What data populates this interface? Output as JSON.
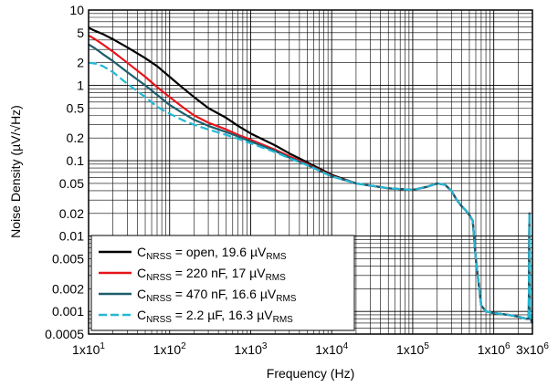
{
  "chart_data": {
    "type": "line",
    "title": "",
    "xlabel": "Frequency (Hz)",
    "ylabel": "Noise Density (µV/√Hz)",
    "x_scale": "log",
    "y_scale": "log",
    "xlim": [
      10,
      3000000
    ],
    "ylim": [
      0.0005,
      10
    ],
    "grid": true,
    "legend_position": "bottom-left",
    "x_ticks": [
      {
        "value": 10,
        "label": "1x10",
        "exp": "1"
      },
      {
        "value": 100,
        "label": "1x10",
        "exp": "2"
      },
      {
        "value": 1000,
        "label": "1x10",
        "exp": "3"
      },
      {
        "value": 10000,
        "label": "1x10",
        "exp": "4"
      },
      {
        "value": 100000,
        "label": "1x10",
        "exp": "5"
      },
      {
        "value": 1000000,
        "label": "1x10",
        "exp": "6"
      },
      {
        "value": 3000000,
        "label": "3x10",
        "exp": "6"
      }
    ],
    "y_ticks": [
      {
        "value": 10,
        "label": "10"
      },
      {
        "value": 5,
        "label": "5"
      },
      {
        "value": 2,
        "label": "2"
      },
      {
        "value": 1,
        "label": "1"
      },
      {
        "value": 0.5,
        "label": "0.5"
      },
      {
        "value": 0.2,
        "label": "0.2"
      },
      {
        "value": 0.1,
        "label": "0.1"
      },
      {
        "value": 0.05,
        "label": "0.05"
      },
      {
        "value": 0.02,
        "label": "0.02"
      },
      {
        "value": 0.01,
        "label": "0.01"
      },
      {
        "value": 0.005,
        "label": "0.005"
      },
      {
        "value": 0.002,
        "label": "0.002"
      },
      {
        "value": 0.001,
        "label": "0.001"
      },
      {
        "value": 0.0005,
        "label": "0.0005"
      }
    ],
    "series": [
      {
        "name": "C_NRSS = open, 19.6 µV_RMS",
        "legend_parts": {
          "main": "C",
          "sub": "NRSS",
          "rest": " = open, 19.6 µV",
          "sub2": "RMS"
        },
        "color": "#000000",
        "dash": false,
        "x": [
          10,
          12,
          15,
          20,
          30,
          50,
          70,
          100,
          150,
          200,
          300,
          500,
          700,
          1000,
          2000,
          3000,
          5000,
          10000,
          20000,
          50000,
          100000,
          150000,
          200000,
          250000,
          300000,
          350000,
          400000,
          450000,
          500000,
          550000,
          600000,
          700000,
          800000,
          1000000,
          1500000,
          2000000,
          2500000,
          2700000,
          2750000,
          2800000,
          2900000,
          3000000
        ],
        "y": [
          5.8,
          5.3,
          4.8,
          4.1,
          3.2,
          2.3,
          1.8,
          1.3,
          0.9,
          0.7,
          0.5,
          0.37,
          0.29,
          0.23,
          0.16,
          0.125,
          0.095,
          0.065,
          0.05,
          0.043,
          0.041,
          0.045,
          0.05,
          0.048,
          0.04,
          0.03,
          0.025,
          0.022,
          0.019,
          0.016,
          0.005,
          0.0012,
          0.001,
          0.00095,
          0.0009,
          0.00085,
          0.0008,
          0.0008,
          0.02,
          0.0009,
          0.00075,
          0.0007
        ]
      },
      {
        "name": "C_NRSS = 220 nF, 17 µV_RMS",
        "legend_parts": {
          "main": "C",
          "sub": "NRSS",
          "rest": " = 220 nF, 17 µV",
          "sub2": "RMS"
        },
        "color": "#e8141b",
        "dash": false,
        "x": [
          10,
          12,
          15,
          20,
          30,
          50,
          70,
          100,
          150,
          200,
          300,
          500,
          700,
          1000,
          2000,
          3000,
          5000,
          10000,
          20000,
          50000,
          100000,
          150000,
          200000,
          250000,
          300000,
          350000,
          400000,
          450000,
          500000,
          550000,
          600000,
          700000,
          800000,
          1000000,
          1500000,
          2000000,
          2500000,
          2700000,
          2750000,
          2800000,
          2900000,
          3000000
        ],
        "y": [
          4.6,
          4.1,
          3.5,
          2.8,
          2.0,
          1.3,
          0.95,
          0.7,
          0.5,
          0.4,
          0.32,
          0.26,
          0.22,
          0.19,
          0.14,
          0.115,
          0.09,
          0.063,
          0.05,
          0.043,
          0.041,
          0.045,
          0.05,
          0.048,
          0.04,
          0.03,
          0.025,
          0.022,
          0.019,
          0.016,
          0.005,
          0.0012,
          0.001,
          0.00095,
          0.0009,
          0.00085,
          0.0008,
          0.0008,
          0.02,
          0.0009,
          0.00075,
          0.0007
        ]
      },
      {
        "name": "C_NRSS = 470 nF, 16.6 µV_RMS",
        "legend_parts": {
          "main": "C",
          "sub": "NRSS",
          "rest": " = 470 nF, 16.6 µV",
          "sub2": "RMS"
        },
        "color": "#1d5d6b",
        "dash": false,
        "x": [
          10,
          12,
          15,
          20,
          30,
          50,
          70,
          100,
          150,
          200,
          300,
          500,
          700,
          1000,
          2000,
          3000,
          5000,
          10000,
          20000,
          50000,
          100000,
          150000,
          200000,
          250000,
          300000,
          350000,
          400000,
          450000,
          500000,
          550000,
          600000,
          700000,
          800000,
          1000000,
          1500000,
          2000000,
          2500000,
          2700000,
          2750000,
          2800000,
          2900000,
          3000000
        ],
        "y": [
          3.5,
          3.1,
          2.6,
          2.1,
          1.5,
          1.0,
          0.75,
          0.55,
          0.42,
          0.35,
          0.29,
          0.24,
          0.21,
          0.18,
          0.135,
          0.11,
          0.088,
          0.062,
          0.05,
          0.043,
          0.041,
          0.045,
          0.05,
          0.048,
          0.04,
          0.03,
          0.025,
          0.022,
          0.019,
          0.016,
          0.005,
          0.0012,
          0.001,
          0.00095,
          0.0009,
          0.00085,
          0.0008,
          0.0008,
          0.02,
          0.0009,
          0.00075,
          0.0007
        ]
      },
      {
        "name": "C_NRSS = 2.2 µF, 16.3 µV_RMS",
        "legend_parts": {
          "main": "C",
          "sub": "NRSS",
          "rest": " = 2.2 µF, 16.3 µV",
          "sub2": "RMS"
        },
        "color": "#22b8d4",
        "dash": true,
        "x": [
          10,
          12,
          15,
          20,
          30,
          50,
          70,
          100,
          150,
          200,
          300,
          500,
          700,
          1000,
          2000,
          3000,
          5000,
          10000,
          20000,
          50000,
          100000,
          150000,
          200000,
          250000,
          300000,
          350000,
          400000,
          450000,
          500000,
          550000,
          600000,
          700000,
          800000,
          1000000,
          1500000,
          2000000,
          2500000,
          2700000,
          2750000,
          2800000,
          2900000,
          3000000
        ],
        "y": [
          2.0,
          1.95,
          1.8,
          1.5,
          1.05,
          0.7,
          0.52,
          0.42,
          0.34,
          0.3,
          0.26,
          0.22,
          0.195,
          0.17,
          0.13,
          0.108,
          0.087,
          0.062,
          0.05,
          0.043,
          0.041,
          0.045,
          0.05,
          0.048,
          0.04,
          0.03,
          0.025,
          0.022,
          0.019,
          0.016,
          0.005,
          0.0012,
          0.001,
          0.00095,
          0.0009,
          0.00085,
          0.0008,
          0.0008,
          0.02,
          0.0009,
          0.00075,
          0.0007
        ]
      }
    ]
  }
}
